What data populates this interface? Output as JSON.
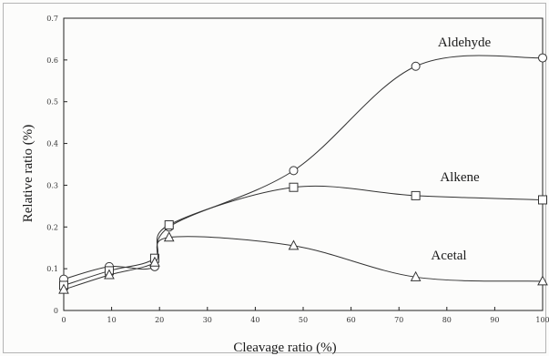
{
  "chart_data": {
    "type": "line",
    "xlabel": "Cleavage ratio (%)",
    "ylabel": "Relative ratio (%)",
    "xlim": [
      0,
      100
    ],
    "ylim": [
      0,
      0.7
    ],
    "x_ticks": [
      0,
      10,
      20,
      30,
      40,
      50,
      60,
      70,
      80,
      90,
      100
    ],
    "y_ticks": [
      0,
      0.1,
      0.2,
      0.3,
      0.4,
      0.5,
      0.6,
      0.7
    ],
    "x_tick_labels": [
      "0",
      "10",
      "20",
      "30",
      "40",
      "50",
      "60",
      "70",
      "80",
      "90",
      "100"
    ],
    "y_tick_labels": [
      "0",
      "0.1",
      "0.2",
      "0.3",
      "0.4",
      "0.5",
      "0.6",
      "0.7"
    ],
    "grid": false,
    "series": [
      {
        "name": "Aldehyde",
        "marker": "circle",
        "x": [
          0,
          9.5,
          19,
          22,
          48,
          73.5,
          100
        ],
        "y": [
          0.075,
          0.105,
          0.105,
          0.2,
          0.335,
          0.585,
          0.605
        ]
      },
      {
        "name": "Alkene",
        "marker": "square",
        "x": [
          0,
          9.5,
          19,
          22,
          48,
          73.5,
          100
        ],
        "y": [
          0.06,
          0.095,
          0.125,
          0.205,
          0.295,
          0.275,
          0.265
        ]
      },
      {
        "name": "Acetal",
        "marker": "triangle",
        "x": [
          0,
          9.5,
          19,
          22,
          48,
          73.5,
          100
        ],
        "y": [
          0.05,
          0.085,
          0.115,
          0.175,
          0.155,
          0.08,
          0.07
        ]
      }
    ]
  }
}
